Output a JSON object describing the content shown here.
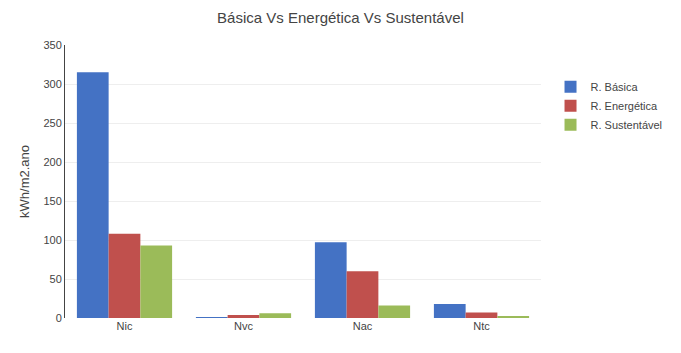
{
  "chart_data": {
    "type": "bar",
    "title": "Básica Vs Energética Vs Sustentável",
    "categories": [
      "Nic",
      "Nvc",
      "Nac",
      "Ntc"
    ],
    "series": [
      {
        "name": "R. Básica",
        "color": "#4472C4",
        "values": [
          315,
          1,
          97,
          18
        ]
      },
      {
        "name": "R. Energética",
        "color": "#C0504D",
        "values": [
          108,
          4,
          60,
          7
        ]
      },
      {
        "name": "R. Sustentável",
        "color": "#9BBB59",
        "values": [
          93,
          6,
          16,
          2
        ]
      }
    ],
    "ylabel": "kWh/m2.ano",
    "ylim": [
      0,
      350
    ],
    "yticks": [
      0,
      50,
      100,
      150,
      200,
      250,
      300,
      350
    ],
    "grid": true,
    "legend": "right"
  }
}
